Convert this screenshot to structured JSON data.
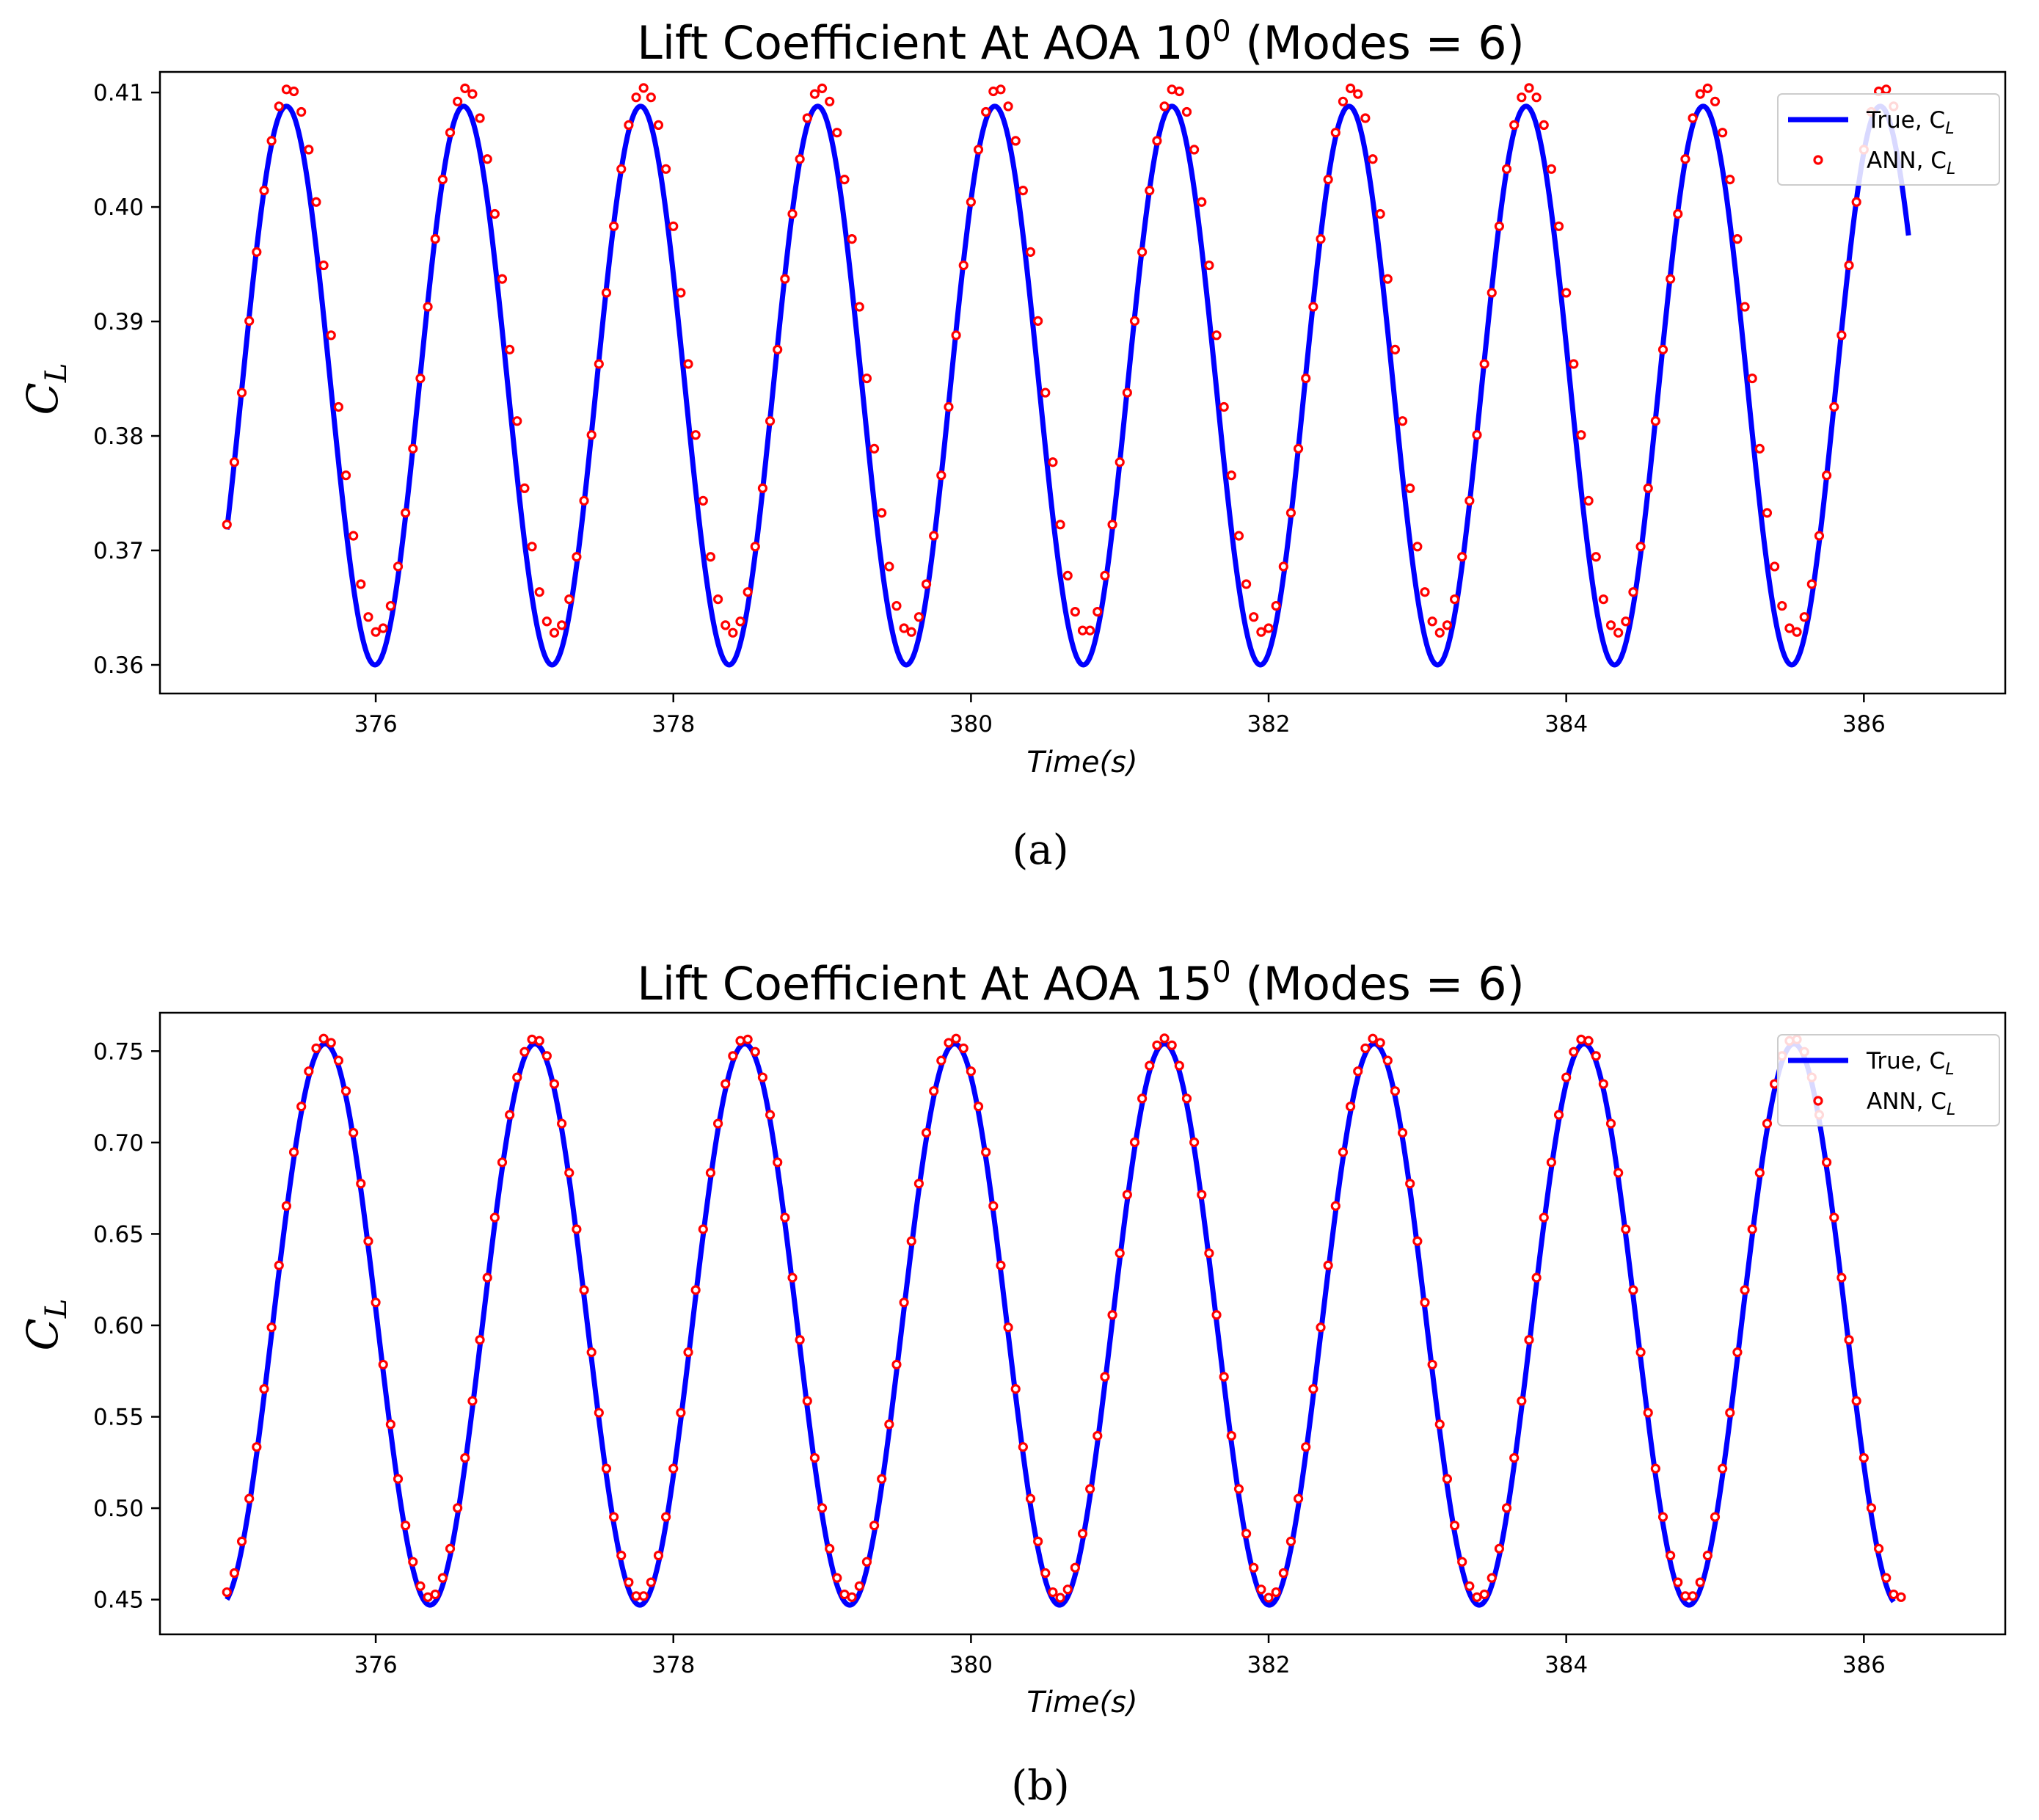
{
  "chart_data": [
    {
      "type": "line",
      "panel_label": "(a)",
      "title_main": "Lift Coefficient At AOA 10",
      "title_sup": "0",
      "title_tail": " (Modes = 6)",
      "xlabel": "Time(s)",
      "ylabel": "C",
      "ylabel_sub": "L",
      "xlim": [
        374.55,
        386.95
      ],
      "ylim": [
        0.3575,
        0.4118
      ],
      "xticks": [
        376,
        378,
        380,
        382,
        384,
        386
      ],
      "xtick_labels": [
        "376",
        "378",
        "380",
        "382",
        "384",
        "386"
      ],
      "yticks": [
        0.36,
        0.37,
        0.38,
        0.39,
        0.4,
        0.41
      ],
      "ytick_labels": [
        "0.36",
        "0.37",
        "0.38",
        "0.39",
        "0.40",
        "0.41"
      ],
      "legend_position": "top-right",
      "colors": {
        "true": "#0000ff",
        "ann": "#ff0000"
      },
      "series": [
        {
          "name": "True, C",
          "name_sub": "L",
          "style": "line",
          "x_start": 375.0,
          "x_end": 386.3,
          "period": 1.19,
          "first_peak_time": 375.4,
          "min": 0.36,
          "max": 0.4088
        },
        {
          "name": "ANN, C",
          "name_sub": "L",
          "style": "markers",
          "x_start": 375.0,
          "x_end": 386.2,
          "sample_step": 0.05,
          "period": 1.19,
          "first_peak_time": 375.42,
          "min": 0.3628,
          "max": 0.4104
        }
      ]
    },
    {
      "type": "line",
      "panel_label": "(b)",
      "title_main": "Lift Coefficient At AOA 15",
      "title_sup": "0",
      "title_tail": " (Modes = 6)",
      "xlabel": "Time(s)",
      "ylabel": "C",
      "ylabel_sub": "L",
      "xlim": [
        374.55,
        386.95
      ],
      "ylim": [
        0.431,
        0.771
      ],
      "xticks": [
        376,
        378,
        380,
        382,
        384,
        386
      ],
      "xtick_labels": [
        "376",
        "378",
        "380",
        "382",
        "384",
        "386"
      ],
      "yticks": [
        0.45,
        0.5,
        0.55,
        0.6,
        0.65,
        0.7,
        0.75
      ],
      "ytick_labels": [
        "0.45",
        "0.50",
        "0.55",
        "0.60",
        "0.65",
        "0.70",
        "0.75"
      ],
      "legend_position": "top-right",
      "colors": {
        "true": "#0000ff",
        "ann": "#ff0000"
      },
      "series": [
        {
          "name": "True, C",
          "name_sub": "L",
          "style": "line",
          "x_start": 375.0,
          "x_end": 386.2,
          "period": 1.41,
          "first_peak_time": 375.66,
          "min": 0.447,
          "max": 0.754
        },
        {
          "name": "ANN, C",
          "name_sub": "L",
          "style": "markers",
          "x_start": 375.0,
          "x_end": 386.25,
          "sample_step": 0.05,
          "period": 1.41,
          "first_peak_time": 375.66,
          "min": 0.451,
          "max": 0.757
        }
      ]
    }
  ]
}
